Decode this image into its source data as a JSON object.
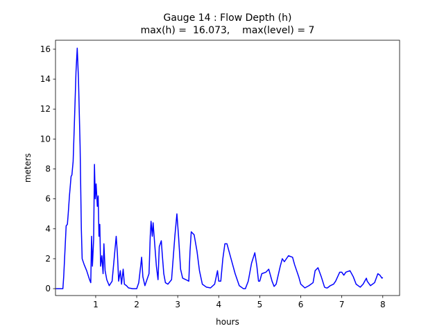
{
  "chart_data": {
    "type": "line",
    "title": "Gauge 14 : Flow Depth (h)",
    "subtitle": "max(h) =  16.073,    max(level) = 7",
    "x_label": "hours",
    "y_label": "meters",
    "xlim": [
      0.02,
      8.41
    ],
    "ylim": [
      -0.46,
      16.6
    ],
    "xticks": [
      1,
      2,
      3,
      4,
      5,
      6,
      7,
      8
    ],
    "yticks": [
      0,
      2,
      4,
      6,
      8,
      10,
      12,
      14,
      16
    ],
    "grid": false,
    "series": [
      {
        "name": "h",
        "color": "#0000ff",
        "x": [
          0.03,
          0.2,
          0.22,
          0.25,
          0.28,
          0.31,
          0.33,
          0.36,
          0.4,
          0.42,
          0.45,
          0.48,
          0.52,
          0.55,
          0.58,
          0.62,
          0.65,
          0.67,
          0.72,
          0.78,
          0.85,
          0.88,
          0.9,
          0.92,
          0.95,
          0.97,
          0.99,
          1.01,
          1.04,
          1.06,
          1.08,
          1.1,
          1.12,
          1.15,
          1.18,
          1.2,
          1.23,
          1.27,
          1.33,
          1.4,
          1.45,
          1.5,
          1.53,
          1.56,
          1.6,
          1.63,
          1.67,
          1.7,
          1.75,
          1.8,
          1.9,
          2.0,
          2.05,
          2.1,
          2.12,
          2.15,
          2.2,
          2.3,
          2.33,
          2.35,
          2.38,
          2.4,
          2.43,
          2.48,
          2.52,
          2.55,
          2.6,
          2.62,
          2.66,
          2.7,
          2.76,
          2.85,
          2.93,
          2.98,
          3.02,
          3.07,
          3.12,
          3.2,
          3.27,
          3.3,
          3.33,
          3.4,
          3.47,
          3.53,
          3.6,
          3.7,
          3.8,
          3.9,
          3.97,
          4.0,
          4.05,
          4.1,
          4.15,
          4.2,
          4.3,
          4.4,
          4.5,
          4.6,
          4.65,
          4.72,
          4.8,
          4.88,
          4.93,
          4.97,
          5.0,
          5.05,
          5.15,
          5.22,
          5.3,
          5.35,
          5.4,
          5.5,
          5.55,
          5.6,
          5.7,
          5.8,
          5.85,
          5.95,
          6.0,
          6.1,
          6.2,
          6.3,
          6.35,
          6.42,
          6.5,
          6.58,
          6.62,
          6.65,
          6.72,
          6.8,
          6.85,
          6.95,
          7.0,
          7.05,
          7.1,
          7.2,
          7.28,
          7.35,
          7.45,
          7.52,
          7.6,
          7.62,
          7.7,
          7.8,
          7.88,
          7.93,
          7.98,
          8.0
        ],
        "values": [
          0,
          0,
          0.8,
          2.5,
          4.2,
          4.3,
          5,
          6.2,
          7.5,
          7.6,
          8.5,
          11,
          14.5,
          16.07,
          14,
          9.5,
          4,
          2,
          1.6,
          1.2,
          0.6,
          0.4,
          3.5,
          1.5,
          3.3,
          8.3,
          6,
          7,
          5.5,
          6.2,
          3.5,
          4.3,
          1.5,
          2.2,
          1,
          3,
          1.2,
          0.6,
          0.2,
          0.5,
          2,
          3.5,
          2.3,
          0.5,
          1.2,
          0.3,
          1.3,
          0.3,
          0.2,
          0.05,
          0,
          0,
          0.4,
          1.6,
          2.1,
          0.8,
          0.2,
          1,
          3.5,
          4.5,
          3.5,
          4.4,
          3.3,
          1.5,
          0.6,
          2.8,
          3.2,
          2.4,
          1,
          0.4,
          0.3,
          0.6,
          3.5,
          5,
          3.5,
          1.3,
          0.7,
          0.6,
          0.5,
          2.5,
          3.8,
          3.6,
          2.5,
          1.2,
          0.3,
          0.1,
          0.05,
          0.3,
          1.2,
          0.5,
          0.5,
          2,
          3,
          3,
          2,
          1,
          0.2,
          0,
          0,
          0.5,
          1.7,
          2.4,
          1.5,
          0.5,
          0.5,
          1,
          1.1,
          1.3,
          0.5,
          0.15,
          0.3,
          1.5,
          2,
          1.8,
          2.2,
          2.1,
          1.6,
          0.8,
          0.3,
          0.05,
          0.2,
          0.4,
          1.2,
          1.4,
          0.8,
          0.1,
          0.05,
          0.05,
          0.2,
          0.3,
          0.5,
          1.1,
          1.1,
          0.9,
          1.1,
          1.2,
          0.8,
          0.3,
          0.1,
          0.3,
          0.7,
          0.5,
          0.2,
          0.4,
          1,
          0.9,
          0.7,
          0.75
        ]
      }
    ]
  }
}
